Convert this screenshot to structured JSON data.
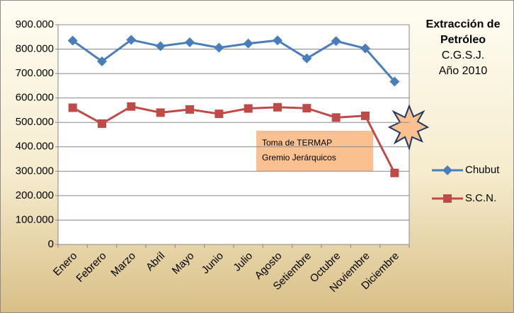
{
  "chart_data": {
    "type": "line",
    "title": "Extracción de Petróleo",
    "subtitle": [
      "C.G.S.J.",
      "Año 2010"
    ],
    "annotation": "Toma de TERMAP Gremio Jerárquicos",
    "categories": [
      "Enero",
      "Febrero",
      "Marzo",
      "Abril",
      "Mayo",
      "Junio",
      "Julio",
      "Agosto",
      "Setiembre",
      "Octubre",
      "Noviembre",
      "Diciembre"
    ],
    "series": [
      {
        "name": "Chubut",
        "color": "#4a7ebb",
        "marker": "diamond",
        "values": [
          835000,
          750000,
          838000,
          812000,
          828000,
          806000,
          823000,
          836000,
          762000,
          833000,
          803000,
          667000
        ]
      },
      {
        "name": "S.C.N.",
        "color": "#be4b48",
        "marker": "square",
        "values": [
          560000,
          495000,
          565000,
          540000,
          553000,
          535000,
          557000,
          562000,
          558000,
          520000,
          527000,
          293000
        ]
      }
    ],
    "ylim": [
      0,
      900000
    ],
    "yticks": [
      0,
      {
        "value": 100000,
        "label": "100.000"
      },
      {
        "value": 200000,
        "label": "200.000"
      },
      {
        "value": 300000,
        "label": "300.000"
      },
      {
        "value": 400000,
        "label": "400.000"
      },
      {
        "value": 500000,
        "label": "500.000"
      },
      {
        "value": 600000,
        "label": "600.000"
      },
      {
        "value": 700000,
        "label": "700.000"
      },
      {
        "value": 800000,
        "label": "800.000"
      },
      {
        "value": 900000,
        "label": "900.000"
      }
    ],
    "grid": true
  }
}
